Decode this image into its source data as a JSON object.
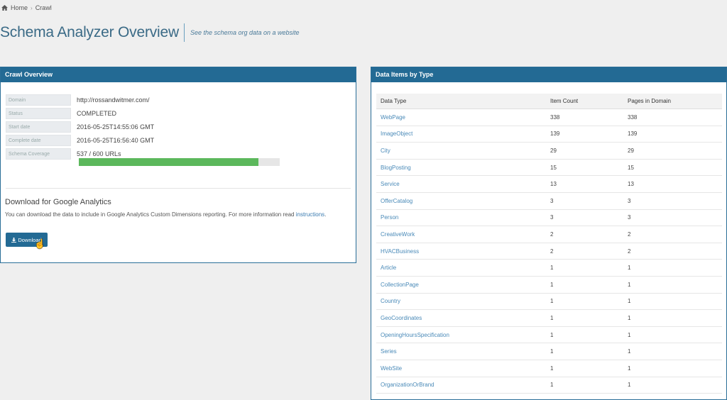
{
  "breadcrumb": {
    "home": "Home",
    "current": "Crawl"
  },
  "header": {
    "title": "Schema Analyzer Overview",
    "subtitle": "See the schema org data on a website"
  },
  "crawl": {
    "panel_title": "Crawl Overview",
    "fields": [
      {
        "key": "Domain",
        "value": "http://rossandwitmer.com/"
      },
      {
        "key": "Status",
        "value": "COMPLETED"
      },
      {
        "key": "Start date",
        "value": "2016-05-25T14:55:06 GMT"
      },
      {
        "key": "Complete date",
        "value": "2016-05-25T16:56:40 GMT"
      },
      {
        "key": "Schema Coverage",
        "value": "537 / 600 URLs"
      }
    ],
    "coverage_fraction": 0.895,
    "coverage_color": "#5cb85c",
    "download_title": "Download for Google Analytics",
    "download_text": "You can download the data to include in Google Analytics Custom Dimensions reporting. For more information read",
    "download_link": "instructions",
    "download_button": "Download"
  },
  "items": {
    "panel_title": "Data Items by Type",
    "columns": [
      "Data Type",
      "Item Count",
      "Pages in Domain"
    ],
    "rows": [
      [
        "WebPage",
        "338",
        "338"
      ],
      [
        "ImageObject",
        "139",
        "139"
      ],
      [
        "City",
        "29",
        "29"
      ],
      [
        "BlogPosting",
        "15",
        "15"
      ],
      [
        "Service",
        "13",
        "13"
      ],
      [
        "OfferCatalog",
        "3",
        "3"
      ],
      [
        "Person",
        "3",
        "3"
      ],
      [
        "CreativeWork",
        "2",
        "2"
      ],
      [
        "HVACBusiness",
        "2",
        "2"
      ],
      [
        "Article",
        "1",
        "1"
      ],
      [
        "CollectionPage",
        "1",
        "1"
      ],
      [
        "Country",
        "1",
        "1"
      ],
      [
        "GeoCoordinates",
        "1",
        "1"
      ],
      [
        "OpeningHoursSpecification",
        "1",
        "1"
      ],
      [
        "Series",
        "1",
        "1"
      ],
      [
        "WebSite",
        "1",
        "1"
      ],
      [
        "OrganizationOrBrand",
        "1",
        "1"
      ]
    ]
  },
  "colors": {
    "header": "#236a94",
    "link": "#4a8ab8"
  }
}
